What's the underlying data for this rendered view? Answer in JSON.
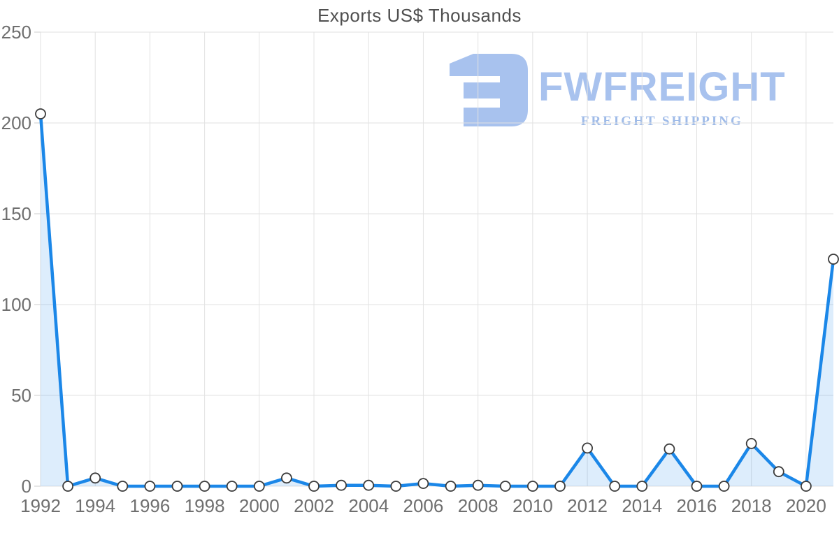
{
  "chart_data": {
    "type": "line",
    "title": "Exports US$ Thousands",
    "x": [
      1992,
      1993,
      1994,
      1995,
      1996,
      1997,
      1998,
      1999,
      2000,
      2001,
      2002,
      2003,
      2004,
      2005,
      2006,
      2007,
      2008,
      2009,
      2010,
      2011,
      2012,
      2013,
      2014,
      2015,
      2016,
      2017,
      2018,
      2019,
      2020,
      2021
    ],
    "values": [
      205,
      0,
      4.5,
      0,
      0,
      0,
      0,
      0,
      0,
      4.5,
      0,
      0.5,
      0.5,
      0,
      1.5,
      0,
      0.5,
      0,
      0,
      0,
      21,
      0,
      0,
      20.5,
      0,
      0,
      23.5,
      8,
      0,
      125
    ],
    "xlabel": "",
    "ylabel": "",
    "ylim": [
      0,
      250
    ],
    "yticks": [
      0,
      50,
      100,
      150,
      200,
      250
    ],
    "xticks": [
      1992,
      1994,
      1996,
      1998,
      2000,
      2002,
      2004,
      2006,
      2008,
      2010,
      2012,
      2014,
      2016,
      2018,
      2020
    ],
    "grid": true,
    "legend": "none",
    "colors": {
      "line": "#1b87e8",
      "area_fill": "rgba(27,135,232,0.15)",
      "marker_fill": "#ffffff",
      "marker_stroke": "#3b3b3b",
      "grid": "#e2e2e2",
      "tick": "#cccccc",
      "axis_text": "#6f6f6f",
      "title_text": "#4f4f4f"
    }
  },
  "watermark": {
    "brand": "FWFREIGHT",
    "tagline": "FREIGHT SHIPPING",
    "color": "#a8c2ee",
    "tagline_color": "#9fbbe8",
    "icon": "fwfreight-logo"
  }
}
